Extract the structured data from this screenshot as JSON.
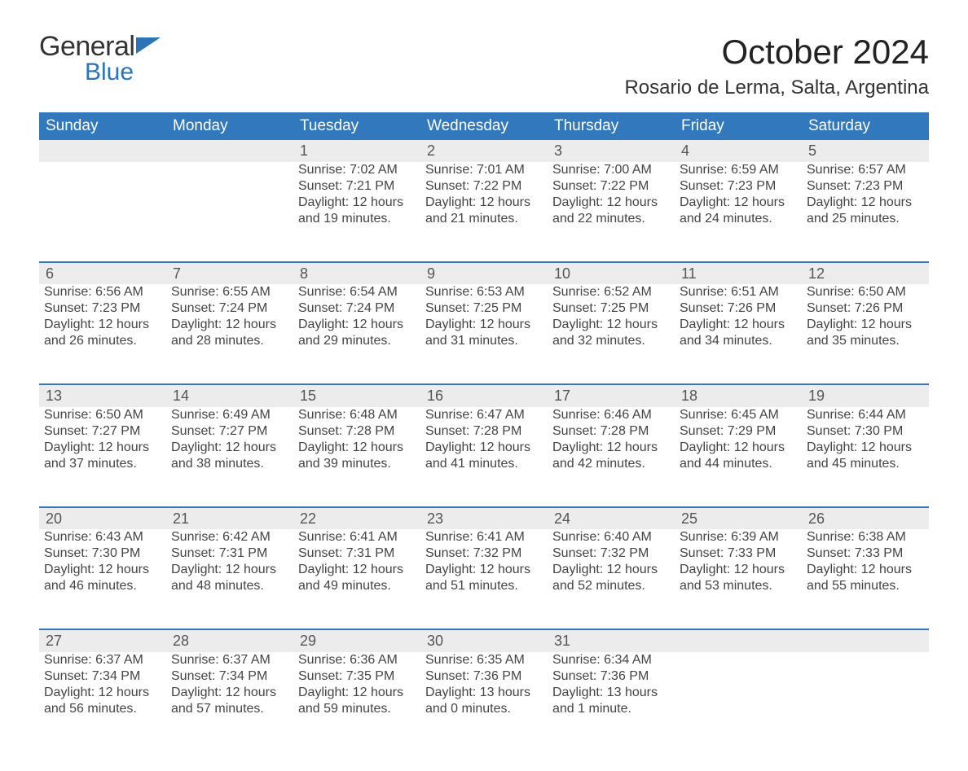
{
  "brand": {
    "part1": "General",
    "part2": "Blue",
    "text_color": "#333333",
    "accent_color": "#2a74b8"
  },
  "title": "October 2024",
  "location": "Rosario de Lerma, Salta, Argentina",
  "colors": {
    "header_bg": "#3178bd",
    "header_text": "#ffffff",
    "daynum_bg": "#ececec",
    "text": "#444444",
    "page_bg": "#ffffff"
  },
  "day_headers": [
    "Sunday",
    "Monday",
    "Tuesday",
    "Wednesday",
    "Thursday",
    "Friday",
    "Saturday"
  ],
  "weeks": [
    [
      null,
      null,
      {
        "n": "1",
        "sr": "Sunrise: 7:02 AM",
        "ss": "Sunset: 7:21 PM",
        "d1": "Daylight: 12 hours",
        "d2": "and 19 minutes."
      },
      {
        "n": "2",
        "sr": "Sunrise: 7:01 AM",
        "ss": "Sunset: 7:22 PM",
        "d1": "Daylight: 12 hours",
        "d2": "and 21 minutes."
      },
      {
        "n": "3",
        "sr": "Sunrise: 7:00 AM",
        "ss": "Sunset: 7:22 PM",
        "d1": "Daylight: 12 hours",
        "d2": "and 22 minutes."
      },
      {
        "n": "4",
        "sr": "Sunrise: 6:59 AM",
        "ss": "Sunset: 7:23 PM",
        "d1": "Daylight: 12 hours",
        "d2": "and 24 minutes."
      },
      {
        "n": "5",
        "sr": "Sunrise: 6:57 AM",
        "ss": "Sunset: 7:23 PM",
        "d1": "Daylight: 12 hours",
        "d2": "and 25 minutes."
      }
    ],
    [
      {
        "n": "6",
        "sr": "Sunrise: 6:56 AM",
        "ss": "Sunset: 7:23 PM",
        "d1": "Daylight: 12 hours",
        "d2": "and 26 minutes."
      },
      {
        "n": "7",
        "sr": "Sunrise: 6:55 AM",
        "ss": "Sunset: 7:24 PM",
        "d1": "Daylight: 12 hours",
        "d2": "and 28 minutes."
      },
      {
        "n": "8",
        "sr": "Sunrise: 6:54 AM",
        "ss": "Sunset: 7:24 PM",
        "d1": "Daylight: 12 hours",
        "d2": "and 29 minutes."
      },
      {
        "n": "9",
        "sr": "Sunrise: 6:53 AM",
        "ss": "Sunset: 7:25 PM",
        "d1": "Daylight: 12 hours",
        "d2": "and 31 minutes."
      },
      {
        "n": "10",
        "sr": "Sunrise: 6:52 AM",
        "ss": "Sunset: 7:25 PM",
        "d1": "Daylight: 12 hours",
        "d2": "and 32 minutes."
      },
      {
        "n": "11",
        "sr": "Sunrise: 6:51 AM",
        "ss": "Sunset: 7:26 PM",
        "d1": "Daylight: 12 hours",
        "d2": "and 34 minutes."
      },
      {
        "n": "12",
        "sr": "Sunrise: 6:50 AM",
        "ss": "Sunset: 7:26 PM",
        "d1": "Daylight: 12 hours",
        "d2": "and 35 minutes."
      }
    ],
    [
      {
        "n": "13",
        "sr": "Sunrise: 6:50 AM",
        "ss": "Sunset: 7:27 PM",
        "d1": "Daylight: 12 hours",
        "d2": "and 37 minutes."
      },
      {
        "n": "14",
        "sr": "Sunrise: 6:49 AM",
        "ss": "Sunset: 7:27 PM",
        "d1": "Daylight: 12 hours",
        "d2": "and 38 minutes."
      },
      {
        "n": "15",
        "sr": "Sunrise: 6:48 AM",
        "ss": "Sunset: 7:28 PM",
        "d1": "Daylight: 12 hours",
        "d2": "and 39 minutes."
      },
      {
        "n": "16",
        "sr": "Sunrise: 6:47 AM",
        "ss": "Sunset: 7:28 PM",
        "d1": "Daylight: 12 hours",
        "d2": "and 41 minutes."
      },
      {
        "n": "17",
        "sr": "Sunrise: 6:46 AM",
        "ss": "Sunset: 7:28 PM",
        "d1": "Daylight: 12 hours",
        "d2": "and 42 minutes."
      },
      {
        "n": "18",
        "sr": "Sunrise: 6:45 AM",
        "ss": "Sunset: 7:29 PM",
        "d1": "Daylight: 12 hours",
        "d2": "and 44 minutes."
      },
      {
        "n": "19",
        "sr": "Sunrise: 6:44 AM",
        "ss": "Sunset: 7:30 PM",
        "d1": "Daylight: 12 hours",
        "d2": "and 45 minutes."
      }
    ],
    [
      {
        "n": "20",
        "sr": "Sunrise: 6:43 AM",
        "ss": "Sunset: 7:30 PM",
        "d1": "Daylight: 12 hours",
        "d2": "and 46 minutes."
      },
      {
        "n": "21",
        "sr": "Sunrise: 6:42 AM",
        "ss": "Sunset: 7:31 PM",
        "d1": "Daylight: 12 hours",
        "d2": "and 48 minutes."
      },
      {
        "n": "22",
        "sr": "Sunrise: 6:41 AM",
        "ss": "Sunset: 7:31 PM",
        "d1": "Daylight: 12 hours",
        "d2": "and 49 minutes."
      },
      {
        "n": "23",
        "sr": "Sunrise: 6:41 AM",
        "ss": "Sunset: 7:32 PM",
        "d1": "Daylight: 12 hours",
        "d2": "and 51 minutes."
      },
      {
        "n": "24",
        "sr": "Sunrise: 6:40 AM",
        "ss": "Sunset: 7:32 PM",
        "d1": "Daylight: 12 hours",
        "d2": "and 52 minutes."
      },
      {
        "n": "25",
        "sr": "Sunrise: 6:39 AM",
        "ss": "Sunset: 7:33 PM",
        "d1": "Daylight: 12 hours",
        "d2": "and 53 minutes."
      },
      {
        "n": "26",
        "sr": "Sunrise: 6:38 AM",
        "ss": "Sunset: 7:33 PM",
        "d1": "Daylight: 12 hours",
        "d2": "and 55 minutes."
      }
    ],
    [
      {
        "n": "27",
        "sr": "Sunrise: 6:37 AM",
        "ss": "Sunset: 7:34 PM",
        "d1": "Daylight: 12 hours",
        "d2": "and 56 minutes."
      },
      {
        "n": "28",
        "sr": "Sunrise: 6:37 AM",
        "ss": "Sunset: 7:34 PM",
        "d1": "Daylight: 12 hours",
        "d2": "and 57 minutes."
      },
      {
        "n": "29",
        "sr": "Sunrise: 6:36 AM",
        "ss": "Sunset: 7:35 PM",
        "d1": "Daylight: 12 hours",
        "d2": "and 59 minutes."
      },
      {
        "n": "30",
        "sr": "Sunrise: 6:35 AM",
        "ss": "Sunset: 7:36 PM",
        "d1": "Daylight: 13 hours",
        "d2": "and 0 minutes."
      },
      {
        "n": "31",
        "sr": "Sunrise: 6:34 AM",
        "ss": "Sunset: 7:36 PM",
        "d1": "Daylight: 13 hours",
        "d2": "and 1 minute."
      },
      null,
      null
    ]
  ]
}
